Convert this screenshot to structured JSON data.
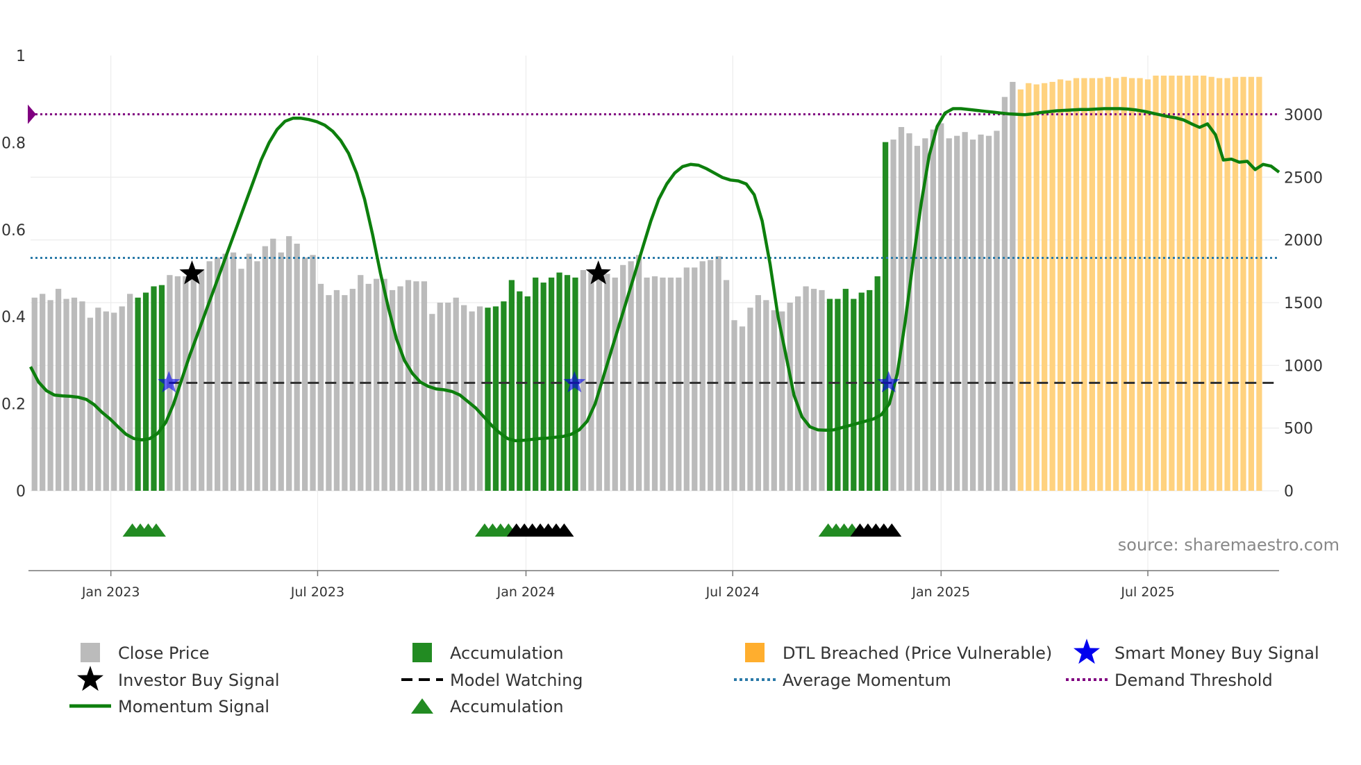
{
  "chart_data": {
    "type": "bar",
    "source": "source: sharemaestro.com",
    "left_axis": {
      "ticks": [
        "0",
        "0.2",
        "0.4",
        "0.6",
        "0.8",
        "1"
      ],
      "values": [
        0,
        0.2,
        0.4,
        0.6,
        0.8,
        1
      ],
      "range": [
        0,
        1
      ]
    },
    "right_axis": {
      "ticks": [
        "0",
        "500",
        "1000",
        "1500",
        "2000",
        "2500",
        "3000"
      ],
      "values": [
        0,
        500,
        1000,
        1500,
        2000,
        2500,
        3000
      ],
      "range": [
        0,
        3470
      ]
    },
    "x_axis": {
      "tick_labels": [
        "Jan 2023",
        "Jul 2023",
        "Jan 2024",
        "Jul 2024",
        "Jan 2025",
        "Jul 2025"
      ],
      "tick_weeks": [
        10.1,
        36.1,
        62.3,
        88.3,
        114.5,
        140.5
      ],
      "range_weeks": [
        0,
        157
      ]
    },
    "close_price": [
      1540,
      1570,
      1520,
      1610,
      1530,
      1540,
      1510,
      1380,
      1460,
      1430,
      1420,
      1470,
      1570,
      1540,
      1580,
      1630,
      1640,
      1720,
      1710,
      1710,
      1720,
      1760,
      1830,
      1860,
      1890,
      1900,
      1770,
      1890,
      1830,
      1950,
      2010,
      1900,
      2030,
      1970,
      1860,
      1880,
      1650,
      1560,
      1600,
      1560,
      1610,
      1720,
      1650,
      1690,
      1690,
      1600,
      1630,
      1680,
      1670,
      1670,
      1410,
      1500,
      1500,
      1540,
      1480,
      1430,
      1470,
      1460,
      1470,
      1510,
      1680,
      1590,
      1550,
      1700,
      1660,
      1700,
      1740,
      1720,
      1700,
      1760,
      1740,
      1700,
      1730,
      1700,
      1800,
      1830,
      1880,
      1700,
      1710,
      1700,
      1700,
      1700,
      1780,
      1780,
      1830,
      1840,
      1870,
      1680,
      1360,
      1310,
      1460,
      1560,
      1520,
      1440,
      1430,
      1500,
      1550,
      1630,
      1610,
      1600,
      1530,
      1530,
      1610,
      1530,
      1580,
      1600,
      1710,
      2780,
      2800,
      2900,
      2850,
      2750,
      2810,
      2880,
      2930,
      2810,
      2830,
      2860,
      2800,
      2840,
      2830,
      2870,
      3140,
      3260,
      3200,
      3250,
      3240,
      3250,
      3260,
      3280,
      3270,
      3290,
      3290,
      3290,
      3290,
      3300,
      3290,
      3300,
      3290,
      3290,
      3280,
      3310,
      3310,
      3310,
      3310,
      3310,
      3310,
      3310,
      3300,
      3290,
      3290,
      3300,
      3300,
      3300,
      3300
    ],
    "accumulation_bar_weeks": [
      13,
      14,
      15,
      16,
      57,
      58,
      59,
      60,
      61,
      62,
      63,
      64,
      65,
      66,
      67,
      68,
      100,
      101,
      102,
      103,
      104,
      105,
      106,
      107
    ],
    "dtl_breached_from_week": 124,
    "momentum_signal": [
      [
        0,
        0.285
      ],
      [
        1,
        0.25
      ],
      [
        2,
        0.23
      ],
      [
        3,
        0.22
      ],
      [
        4,
        0.218
      ],
      [
        5,
        0.217
      ],
      [
        6,
        0.215
      ],
      [
        7,
        0.21
      ],
      [
        8,
        0.198
      ],
      [
        9,
        0.18
      ],
      [
        10,
        0.165
      ],
      [
        11,
        0.147
      ],
      [
        12,
        0.13
      ],
      [
        13,
        0.12
      ],
      [
        14,
        0.117
      ],
      [
        15,
        0.12
      ],
      [
        16,
        0.132
      ],
      [
        17,
        0.157
      ],
      [
        18,
        0.2
      ],
      [
        19,
        0.255
      ],
      [
        20,
        0.31
      ],
      [
        21,
        0.36
      ],
      [
        22,
        0.41
      ],
      [
        23,
        0.46
      ],
      [
        24,
        0.51
      ],
      [
        25,
        0.56
      ],
      [
        26,
        0.61
      ],
      [
        27,
        0.66
      ],
      [
        28,
        0.71
      ],
      [
        29,
        0.76
      ],
      [
        30,
        0.8
      ],
      [
        31,
        0.83
      ],
      [
        32,
        0.849
      ],
      [
        33,
        0.856
      ],
      [
        34,
        0.856
      ],
      [
        35,
        0.853
      ],
      [
        36,
        0.848
      ],
      [
        37,
        0.84
      ],
      [
        38,
        0.826
      ],
      [
        39,
        0.805
      ],
      [
        40,
        0.775
      ],
      [
        41,
        0.73
      ],
      [
        42,
        0.67
      ],
      [
        43,
        0.59
      ],
      [
        44,
        0.5
      ],
      [
        45,
        0.42
      ],
      [
        46,
        0.35
      ],
      [
        47,
        0.3
      ],
      [
        48,
        0.27
      ],
      [
        49,
        0.25
      ],
      [
        50,
        0.24
      ],
      [
        51,
        0.234
      ],
      [
        52,
        0.232
      ],
      [
        53,
        0.228
      ],
      [
        54,
        0.22
      ],
      [
        55,
        0.205
      ],
      [
        56,
        0.19
      ],
      [
        57,
        0.17
      ],
      [
        58,
        0.15
      ],
      [
        59,
        0.133
      ],
      [
        60,
        0.12
      ],
      [
        61,
        0.115
      ],
      [
        62,
        0.116
      ],
      [
        63,
        0.118
      ],
      [
        64,
        0.12
      ],
      [
        65,
        0.121
      ],
      [
        66,
        0.123
      ],
      [
        67,
        0.125
      ],
      [
        68,
        0.13
      ],
      [
        69,
        0.14
      ],
      [
        70,
        0.16
      ],
      [
        71,
        0.2
      ],
      [
        72,
        0.26
      ],
      [
        73,
        0.32
      ],
      [
        74,
        0.38
      ],
      [
        75,
        0.44
      ],
      [
        76,
        0.5
      ],
      [
        77,
        0.56
      ],
      [
        78,
        0.62
      ],
      [
        79,
        0.67
      ],
      [
        80,
        0.705
      ],
      [
        81,
        0.73
      ],
      [
        82,
        0.745
      ],
      [
        83,
        0.75
      ],
      [
        84,
        0.748
      ],
      [
        85,
        0.74
      ],
      [
        86,
        0.73
      ],
      [
        87,
        0.72
      ],
      [
        88,
        0.714
      ],
      [
        89,
        0.712
      ],
      [
        90,
        0.705
      ],
      [
        91,
        0.68
      ],
      [
        92,
        0.62
      ],
      [
        93,
        0.52
      ],
      [
        94,
        0.4
      ],
      [
        95,
        0.31
      ],
      [
        96,
        0.22
      ],
      [
        97,
        0.17
      ],
      [
        98,
        0.147
      ],
      [
        99,
        0.14
      ],
      [
        100,
        0.139
      ],
      [
        101,
        0.14
      ],
      [
        102,
        0.145
      ],
      [
        103,
        0.15
      ],
      [
        104,
        0.155
      ],
      [
        105,
        0.16
      ],
      [
        106,
        0.165
      ],
      [
        107,
        0.175
      ],
      [
        108,
        0.2
      ],
      [
        109,
        0.27
      ],
      [
        110,
        0.39
      ],
      [
        111,
        0.53
      ],
      [
        112,
        0.66
      ],
      [
        113,
        0.77
      ],
      [
        114,
        0.837
      ],
      [
        115,
        0.868
      ],
      [
        116,
        0.878
      ],
      [
        117,
        0.878
      ],
      [
        118,
        0.876
      ],
      [
        119,
        0.874
      ],
      [
        120,
        0.872
      ],
      [
        121,
        0.87
      ],
      [
        122,
        0.868
      ],
      [
        123,
        0.866
      ],
      [
        124,
        0.865
      ],
      [
        125,
        0.864
      ],
      [
        126,
        0.866
      ],
      [
        127,
        0.869
      ],
      [
        128,
        0.871
      ],
      [
        129,
        0.873
      ],
      [
        130,
        0.874
      ],
      [
        131,
        0.875
      ],
      [
        132,
        0.876
      ],
      [
        133,
        0.876
      ],
      [
        134,
        0.877
      ],
      [
        135,
        0.878
      ],
      [
        136,
        0.878
      ],
      [
        137,
        0.878
      ],
      [
        138,
        0.877
      ],
      [
        139,
        0.875
      ],
      [
        140,
        0.872
      ],
      [
        141,
        0.868
      ],
      [
        142,
        0.864
      ],
      [
        143,
        0.86
      ],
      [
        144,
        0.857
      ],
      [
        145,
        0.852
      ],
      [
        146,
        0.843
      ],
      [
        147,
        0.835
      ],
      [
        148,
        0.843
      ],
      [
        149,
        0.818
      ],
      [
        150,
        0.76
      ],
      [
        151,
        0.762
      ],
      [
        152,
        0.755
      ],
      [
        153,
        0.757
      ],
      [
        154,
        0.738
      ],
      [
        155,
        0.75
      ],
      [
        156,
        0.746
      ],
      [
        157,
        0.732
      ]
    ],
    "average_momentum": 0.535,
    "demand_threshold": 0.865,
    "model_watching": 0.248,
    "investor_buy_signals": [
      {
        "week": 20.3,
        "value": 0.499
      },
      {
        "week": 71.4,
        "value": 0.499
      }
    ],
    "smart_money_buy_signals": [
      {
        "week": 17.4,
        "value": 0.248
      },
      {
        "week": 68.4,
        "value": 0.248
      },
      {
        "week": 107.9,
        "value": 0.248
      }
    ],
    "accumulation_markers": [
      {
        "week": 12.8,
        "color": "#228b22"
      },
      {
        "week": 13.8,
        "color": "#228b22"
      },
      {
        "week": 14.8,
        "color": "#228b22"
      },
      {
        "week": 15.8,
        "color": "#228b22"
      },
      {
        "week": 57.1,
        "color": "#228b22"
      },
      {
        "week": 58.1,
        "color": "#228b22"
      },
      {
        "week": 59.1,
        "color": "#228b22"
      },
      {
        "week": 60.1,
        "color": "#228b22"
      },
      {
        "week": 61.1,
        "color": "#000000"
      },
      {
        "week": 62.1,
        "color": "#000000"
      },
      {
        "week": 63.1,
        "color": "#000000"
      },
      {
        "week": 64.1,
        "color": "#000000"
      },
      {
        "week": 65.1,
        "color": "#000000"
      },
      {
        "week": 66.1,
        "color": "#000000"
      },
      {
        "week": 67.1,
        "color": "#000000"
      },
      {
        "week": 100.3,
        "color": "#228b22"
      },
      {
        "week": 101.3,
        "color": "#228b22"
      },
      {
        "week": 102.3,
        "color": "#228b22"
      },
      {
        "week": 103.3,
        "color": "#228b22"
      },
      {
        "week": 104.3,
        "color": "#000000"
      },
      {
        "week": 105.3,
        "color": "#000000"
      },
      {
        "week": 106.3,
        "color": "#000000"
      },
      {
        "week": 107.3,
        "color": "#000000"
      },
      {
        "week": 108.3,
        "color": "#000000"
      }
    ],
    "colors": {
      "close_price": "#bbbbbb",
      "accumulation": "#228b22",
      "dtl_breached": "#ffd27f",
      "momentum": "#0d7f0d",
      "momentum_faded": "#5e9e5e",
      "average_momentum": "#2a7aa8",
      "demand_threshold": "#800080",
      "model_watching": "#333333",
      "smart_money": "#0000ee",
      "investor": "#000000"
    },
    "legend": [
      {
        "label": "Close Price",
        "symbol": "square",
        "color": "#bbbbbb"
      },
      {
        "label": "Accumulation",
        "symbol": "square",
        "color": "#228b22"
      },
      {
        "label": "DTL Breached (Price Vulnerable)",
        "symbol": "square",
        "color": "#ffae2e"
      },
      {
        "label": "Smart Money Buy Signal",
        "symbol": "star",
        "color": "#0000ee"
      },
      {
        "label": "Investor Buy Signal",
        "symbol": "star",
        "color": "#000000"
      },
      {
        "label": "Model Watching",
        "symbol": "dash",
        "color": "#000000"
      },
      {
        "label": "Average Momentum",
        "symbol": "dot",
        "color": "#2a7aa8"
      },
      {
        "label": "Demand Threshold",
        "symbol": "dot",
        "color": "#800080"
      },
      {
        "label": "Momentum Signal",
        "symbol": "line",
        "color": "#0d7f0d"
      },
      {
        "label": "Accumulation",
        "symbol": "triangle",
        "color": "#228b22"
      }
    ]
  }
}
